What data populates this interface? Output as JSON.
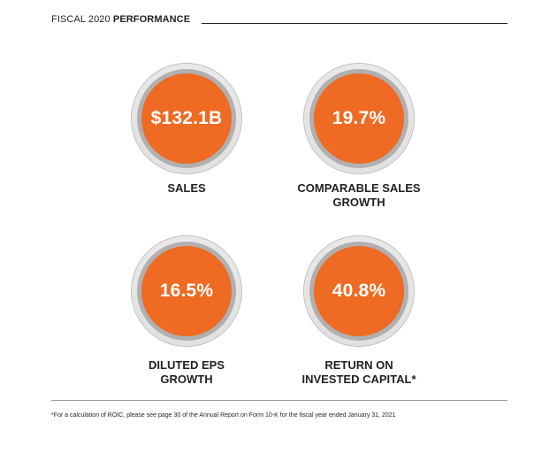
{
  "header": {
    "prefix": "FISCAL 2020",
    "emphasis": "PERFORMANCE"
  },
  "metrics": [
    {
      "value": "$132.1B",
      "label_line1": "SALES",
      "label_line2": ""
    },
    {
      "value": "19.7%",
      "label_line1": "COMPARABLE SALES",
      "label_line2": "GROWTH"
    },
    {
      "value": "16.5%",
      "label_line1": "DILUTED EPS",
      "label_line2": "GROWTH"
    },
    {
      "value": "40.8%",
      "label_line1": "RETURN ON",
      "label_line2": "INVESTED CAPITAL*"
    }
  ],
  "footnote": "*For a calculation of ROIC, please see page 30 of the Annual Report on Form 10-K for the fiscal year ended January 31, 2021",
  "colors": {
    "accent": "#ef6a22",
    "text": "#231f20",
    "ring": "#b0b0b0"
  }
}
